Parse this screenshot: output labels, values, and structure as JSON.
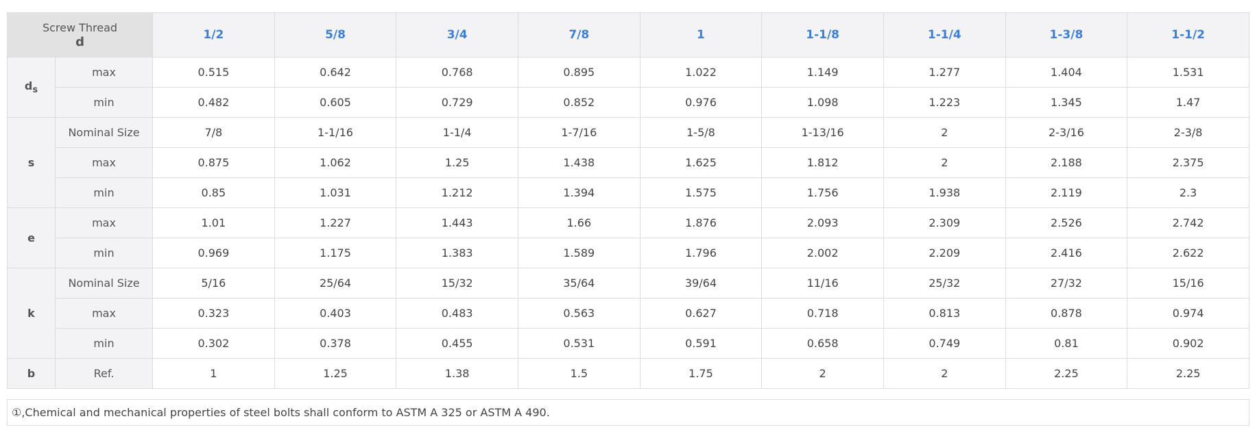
{
  "table": {
    "corner": [
      "Screw Thread",
      "d"
    ],
    "columns": [
      "1/2",
      "5/8",
      "3/4",
      "7/8",
      "1",
      "1-1/8",
      "1-1/4",
      "1-3/8",
      "1-1/2"
    ],
    "groups": [
      {
        "label": "d",
        "label_sub": "s",
        "rows": [
          {
            "label": "max",
            "cells": [
              "0.515",
              "0.642",
              "0.768",
              "0.895",
              "1.022",
              "1.149",
              "1.277",
              "1.404",
              "1.531"
            ]
          },
          {
            "label": "min",
            "cells": [
              "0.482",
              "0.605",
              "0.729",
              "0.852",
              "0.976",
              "1.098",
              "1.223",
              "1.345",
              "1.47"
            ]
          }
        ]
      },
      {
        "label": "s",
        "rows": [
          {
            "label": "Nominal Size",
            "cells": [
              "7/8",
              "1-1/16",
              "1-1/4",
              "1-7/16",
              "1-5/8",
              "1-13/16",
              "2",
              "2-3/16",
              "2-3/8"
            ]
          },
          {
            "label": "max",
            "cells": [
              "0.875",
              "1.062",
              "1.25",
              "1.438",
              "1.625",
              "1.812",
              "2",
              "2.188",
              "2.375"
            ]
          },
          {
            "label": "min",
            "cells": [
              "0.85",
              "1.031",
              "1.212",
              "1.394",
              "1.575",
              "1.756",
              "1.938",
              "2.119",
              "2.3"
            ]
          }
        ]
      },
      {
        "label": "e",
        "rows": [
          {
            "label": "max",
            "cells": [
              "1.01",
              "1.227",
              "1.443",
              "1.66",
              "1.876",
              "2.093",
              "2.309",
              "2.526",
              "2.742"
            ]
          },
          {
            "label": "min",
            "cells": [
              "0.969",
              "1.175",
              "1.383",
              "1.589",
              "1.796",
              "2.002",
              "2.209",
              "2.416",
              "2.622"
            ]
          }
        ]
      },
      {
        "label": "k",
        "rows": [
          {
            "label": "Nominal Size",
            "cells": [
              "5/16",
              "25/64",
              "15/32",
              "35/64",
              "39/64",
              "11/16",
              "25/32",
              "27/32",
              "15/16"
            ]
          },
          {
            "label": "max",
            "cells": [
              "0.323",
              "0.403",
              "0.483",
              "0.563",
              "0.627",
              "0.718",
              "0.813",
              "0.878",
              "0.974"
            ]
          },
          {
            "label": "min",
            "cells": [
              "0.302",
              "0.378",
              "0.455",
              "0.531",
              "0.591",
              "0.658",
              "0.749",
              "0.81",
              "0.902"
            ]
          }
        ]
      },
      {
        "label": "b",
        "rows": [
          {
            "label": "Ref.",
            "cells": [
              "1",
              "1.25",
              "1.38",
              "1.5",
              "1.75",
              "2",
              "2",
              "2.25",
              "2.25"
            ]
          }
        ]
      }
    ]
  },
  "note": "①,Chemical and mechanical properties of steel bolts shall conform to ASTM A 325 or ASTM A 490."
}
